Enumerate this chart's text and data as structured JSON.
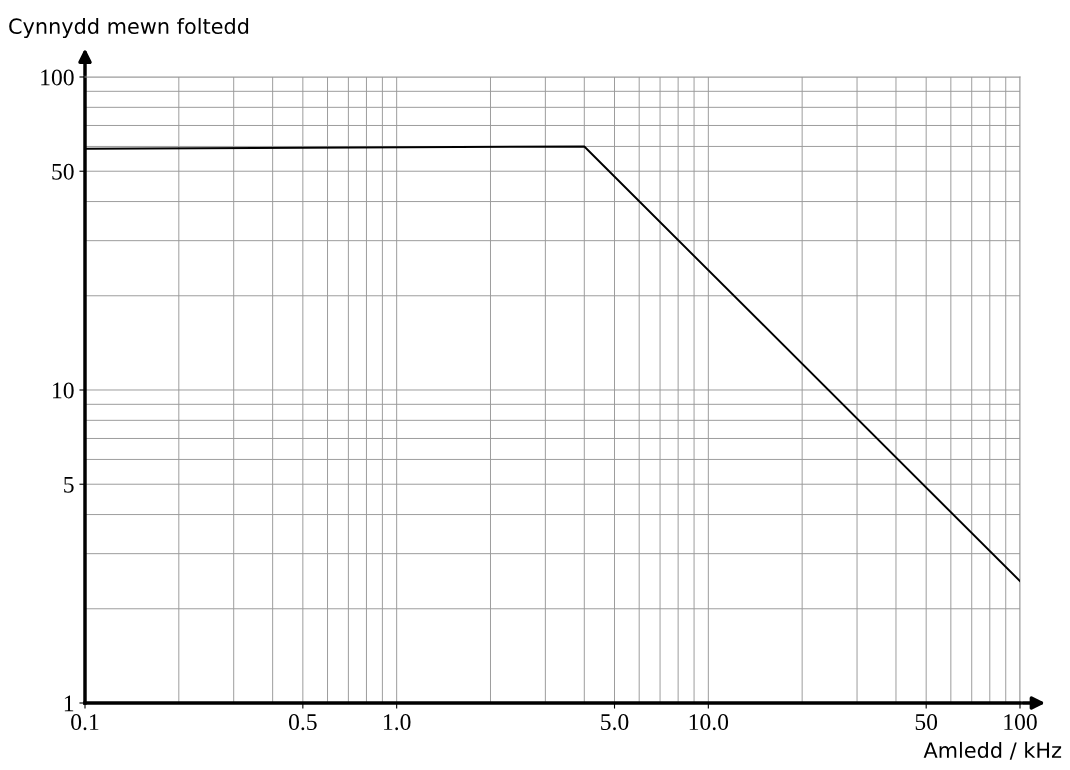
{
  "chart_data": {
    "type": "line",
    "xlabel": "Amledd / kHz",
    "ylabel": "Cynnydd mewn foltedd",
    "x": [
      0.1,
      4.0,
      100
    ],
    "series": [
      {
        "color": "#000000",
        "values": [
          59,
          60,
          2.45
        ]
      }
    ],
    "log": "xy",
    "grid": true,
    "marker": "none",
    "line_style": "solid",
    "xlim": [
      0.1,
      100
    ],
    "ylim": [
      1,
      100
    ],
    "xticks": [
      {
        "value": 0.1,
        "label": "0.1"
      },
      {
        "value": 0.5,
        "label": "0.5"
      },
      {
        "value": 1,
        "label": "1.0"
      },
      {
        "value": 5,
        "label": "5.0"
      },
      {
        "value": 10,
        "label": "10.0"
      },
      {
        "value": 50,
        "label": "50"
      },
      {
        "value": 100,
        "label": "100"
      }
    ],
    "yticks": [
      1,
      5,
      10,
      50,
      100
    ]
  }
}
